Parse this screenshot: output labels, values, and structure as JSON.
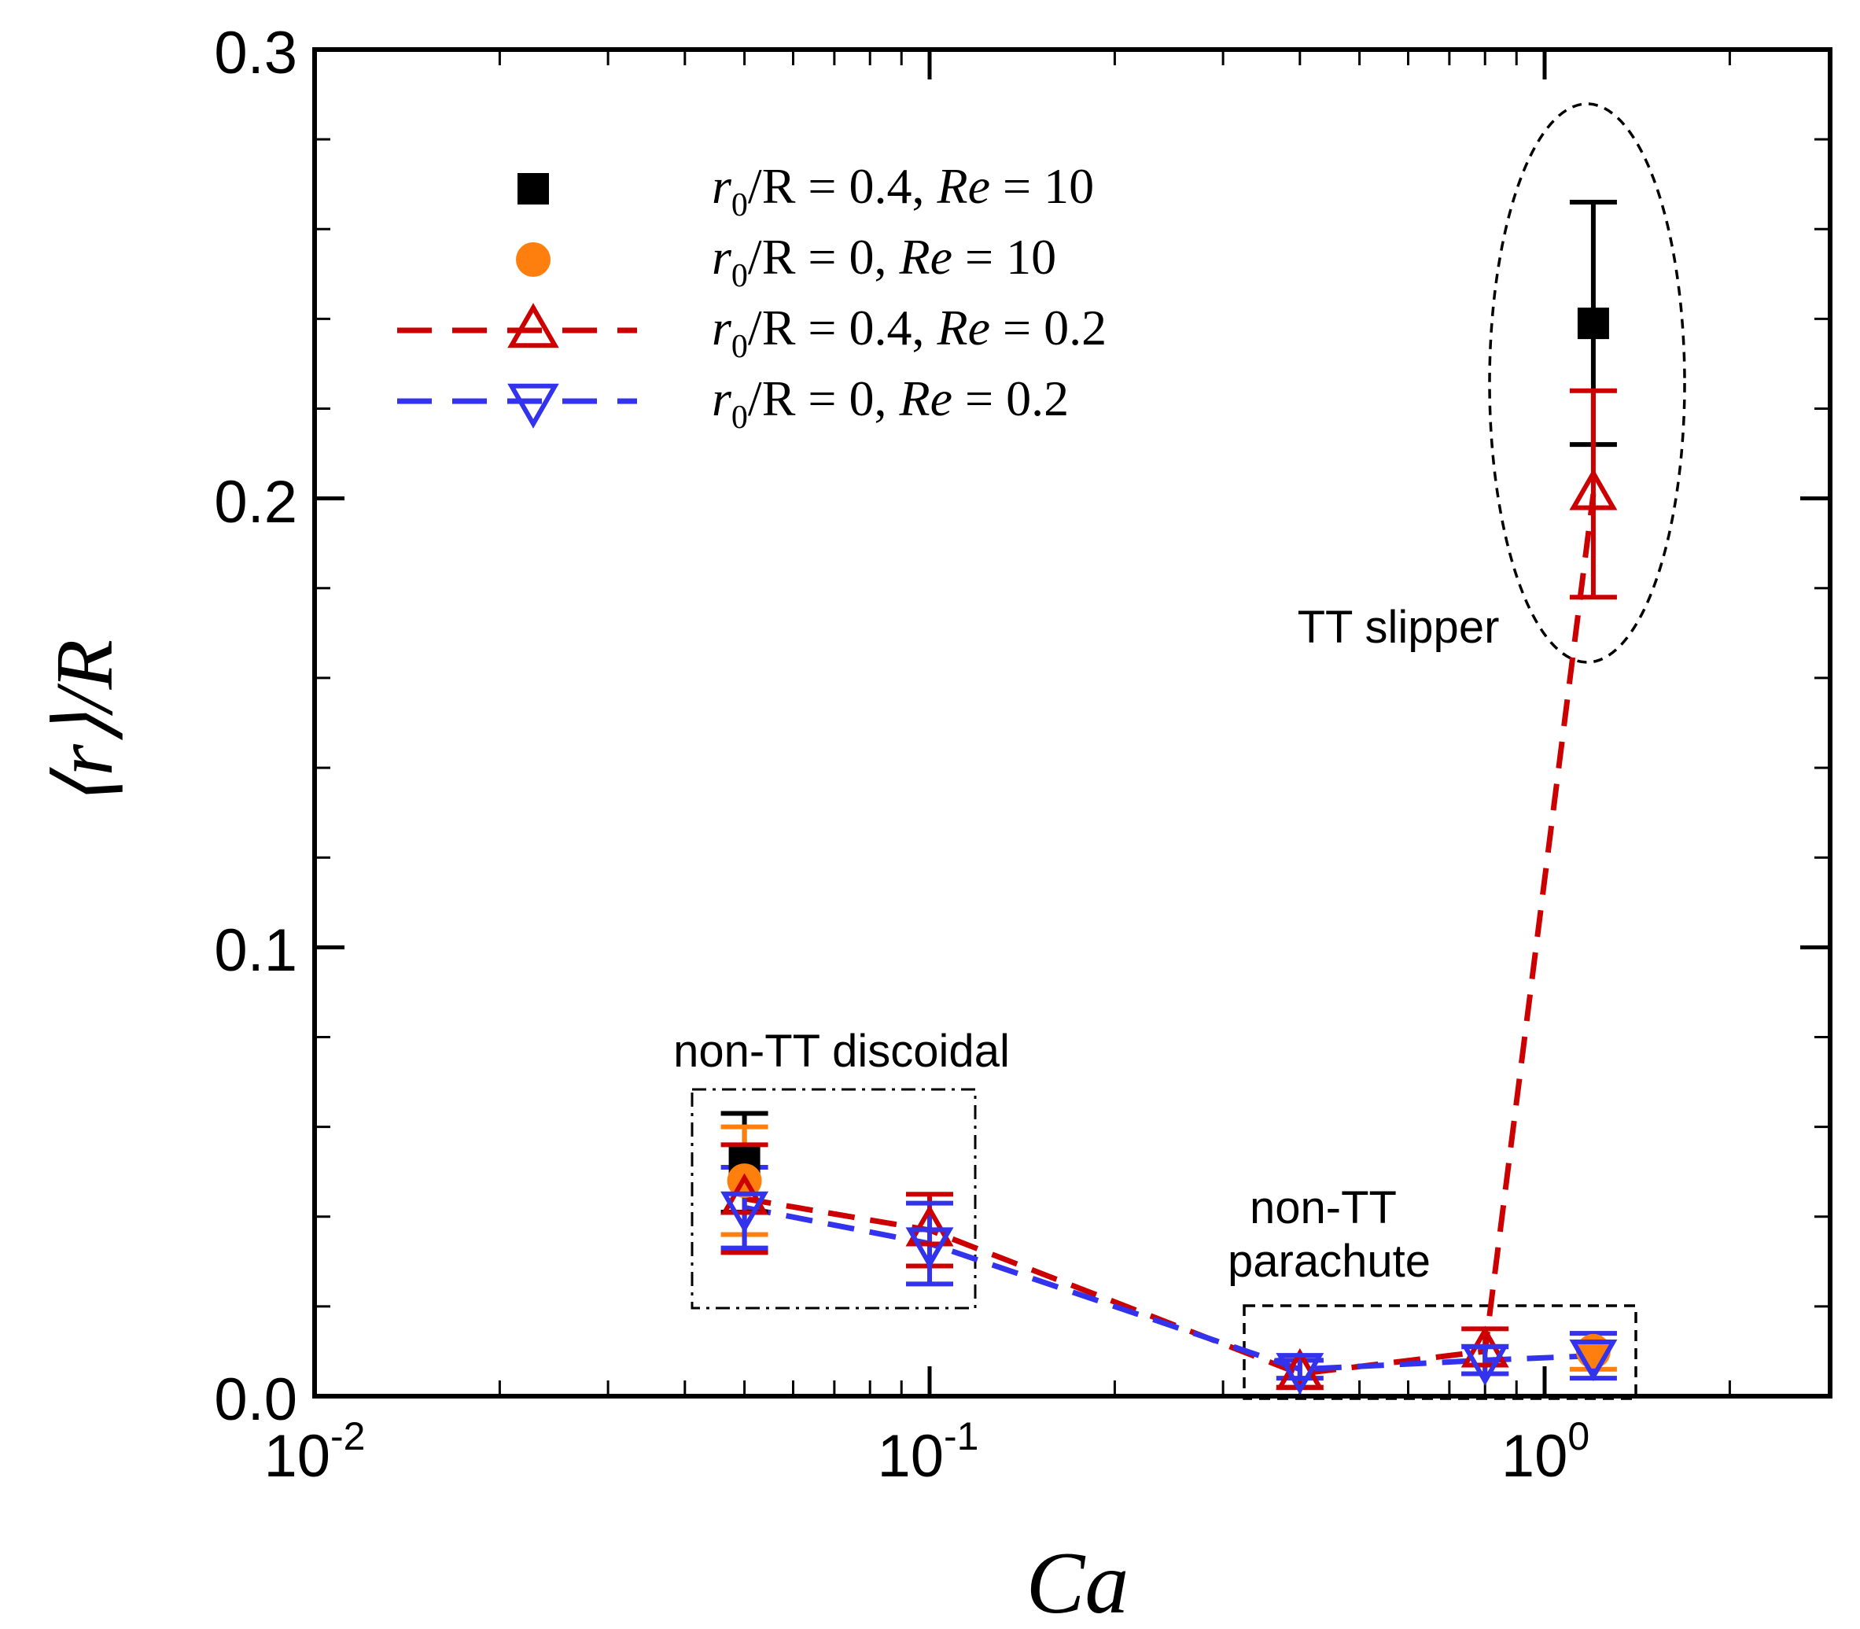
{
  "chart_data": {
    "type": "scatter",
    "xscale": "log",
    "xlim": [
      0.01,
      3.5
    ],
    "ylim": [
      0,
      0.3
    ],
    "xlabel": "Ca",
    "ylabel": "⟨r⟩/R",
    "x_ticks": [
      {
        "base": "10",
        "exp": "-2"
      },
      {
        "base": "10",
        "exp": "-1"
      },
      {
        "base": "10",
        "exp": "0"
      }
    ],
    "y_ticks": [
      "0.0",
      "0.1",
      "0.2",
      "0.3"
    ],
    "series": [
      {
        "name": "r0/R = 0.4, Re = 10",
        "legend": {
          "prefix": "r",
          "sub": "0",
          "mid": "/R = 0.4, ",
          "re": "Re",
          "suffix": " = 10"
        },
        "color": "#000000",
        "marker": "square",
        "filled": true,
        "line": false,
        "points": [
          {
            "x": 0.05,
            "y": 0.052,
            "err": 0.011
          },
          {
            "x": 1.2,
            "y": 0.239,
            "err": 0.027
          }
        ]
      },
      {
        "name": "r0/R = 0, Re = 10",
        "legend": {
          "prefix": "r",
          "sub": "0",
          "mid": "/R = 0, ",
          "re": "Re",
          "suffix": " = 10"
        },
        "color": "#ff7f0e",
        "marker": "circle",
        "filled": true,
        "line": false,
        "points": [
          {
            "x": 0.05,
            "y": 0.048,
            "err": 0.012
          },
          {
            "x": 1.2,
            "y": 0.01,
            "err": 0.004
          }
        ]
      },
      {
        "name": "r0/R = 0.4, Re = 0.2",
        "legend": {
          "prefix": "r",
          "sub": "0",
          "mid": "/R = 0.4, ",
          "re": "Re",
          "suffix": " = 0.2"
        },
        "color": "#cc0000",
        "marker": "triangle-up",
        "filled": false,
        "line": true,
        "points": [
          {
            "x": 0.05,
            "y": 0.044,
            "err": 0.012
          },
          {
            "x": 0.1,
            "y": 0.037,
            "err": 0.008
          },
          {
            "x": 0.4,
            "y": 0.005,
            "err": 0.003
          },
          {
            "x": 0.8,
            "y": 0.01,
            "err": 0.005
          },
          {
            "x": 1.2,
            "y": 0.201,
            "err": 0.023
          }
        ]
      },
      {
        "name": "r0/R = 0, Re = 0.2",
        "legend": {
          "prefix": "r",
          "sub": "0",
          "mid": "/R = 0, ",
          "re": "Re",
          "suffix": " = 0.2"
        },
        "color": "#3333ee",
        "marker": "triangle-down",
        "filled": false,
        "line": true,
        "points": [
          {
            "x": 0.05,
            "y": 0.042,
            "err": 0.009
          },
          {
            "x": 0.1,
            "y": 0.034,
            "err": 0.009
          },
          {
            "x": 0.4,
            "y": 0.006,
            "err": 0.002
          },
          {
            "x": 0.8,
            "y": 0.008,
            "err": 0.003
          },
          {
            "x": 1.2,
            "y": 0.009,
            "err": 0.005
          }
        ]
      }
    ],
    "annotations": [
      {
        "text": "TT slipper"
      },
      {
        "text": "non-TT discoidal"
      },
      {
        "lines": [
          "non-TT",
          "parachute"
        ]
      }
    ]
  }
}
